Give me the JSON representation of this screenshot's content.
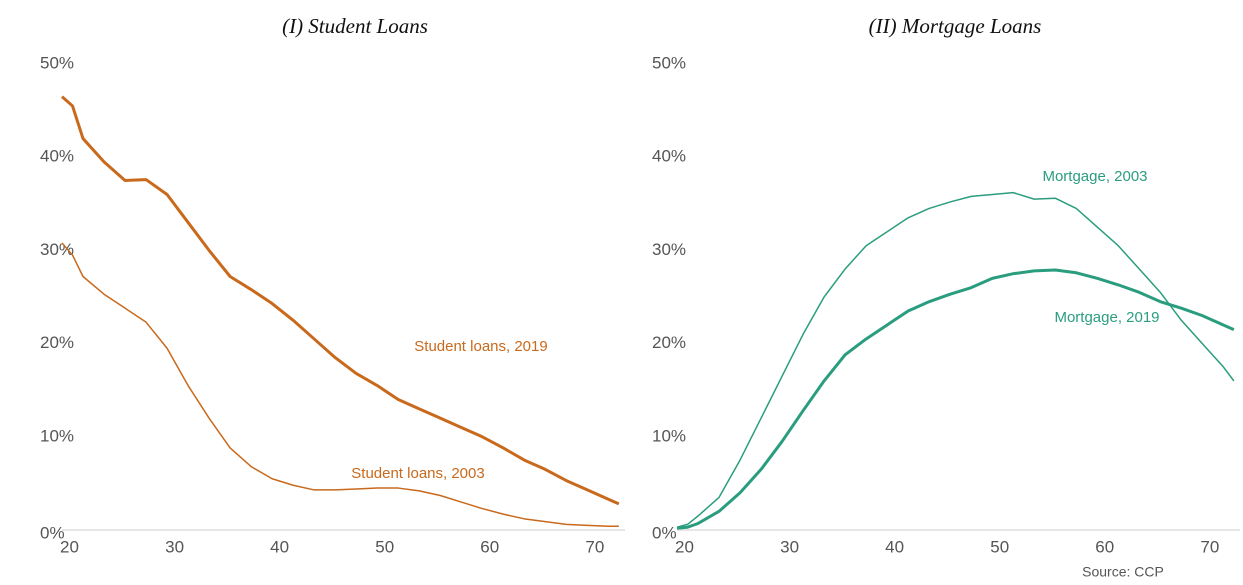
{
  "chart_data": [
    {
      "type": "line",
      "title": "(I) Student Loans",
      "x": [
        19,
        20,
        21,
        23,
        25,
        27,
        29,
        31,
        33,
        35,
        37,
        39,
        41,
        43,
        45,
        47,
        49,
        51,
        53,
        55,
        57,
        59,
        61,
        63,
        65,
        67,
        69,
        71,
        72
      ],
      "series": [
        {
          "name": "Student loans, 2019",
          "color": "#c8691c",
          "line_width": 3,
          "values": [
            46.5,
            45.5,
            42,
            39.5,
            37.5,
            37.6,
            36,
            33,
            30,
            27.2,
            25.8,
            24.3,
            22.5,
            20.5,
            18.5,
            16.8,
            15.5,
            14,
            13,
            12,
            11,
            10,
            8.8,
            7.5,
            6.5,
            5.3,
            4.3,
            3.3,
            2.8
          ]
        },
        {
          "name": "Student loans, 2003",
          "color": "#c8691c",
          "line_width": 1.5,
          "values": [
            30.8,
            29.5,
            27.2,
            25.3,
            23.8,
            22.3,
            19.5,
            15.5,
            12,
            8.8,
            6.8,
            5.5,
            4.8,
            4.3,
            4.3,
            4.4,
            4.5,
            4.5,
            4.2,
            3.7,
            3,
            2.3,
            1.7,
            1.2,
            0.9,
            0.6,
            0.5,
            0.4,
            0.4
          ]
        }
      ],
      "xlim": [
        19,
        72.3
      ],
      "xticks": [
        20,
        30,
        40,
        50,
        60,
        70
      ],
      "ylim": [
        0,
        50
      ],
      "yticks": [
        {
          "value": 0,
          "label": "0%"
        },
        {
          "value": 10,
          "label": "10%"
        },
        {
          "value": 20,
          "label": "20%"
        },
        {
          "value": 30,
          "label": "30%"
        },
        {
          "value": 40,
          "label": "40%"
        },
        {
          "value": 50,
          "label": "50%"
        }
      ],
      "grid": false
    },
    {
      "type": "line",
      "title": "(II) Mortgage Loans",
      "x": [
        19,
        20,
        21,
        23,
        25,
        27,
        29,
        31,
        33,
        35,
        37,
        39,
        41,
        43,
        45,
        47,
        49,
        51,
        53,
        55,
        57,
        59,
        61,
        63,
        65,
        67,
        69,
        71,
        72
      ],
      "series": [
        {
          "name": "Mortgage, 2003",
          "color": "#2a9d7f",
          "line_width": 1.5,
          "values": [
            0.3,
            0.6,
            1.5,
            3.5,
            7.5,
            12,
            16.5,
            21,
            25,
            28,
            30.5,
            32,
            33.5,
            34.5,
            35.2,
            35.8,
            36,
            36.2,
            35.5,
            35.6,
            34.5,
            32.5,
            30.5,
            28,
            25.5,
            22.5,
            20,
            17.5,
            16
          ]
        },
        {
          "name": "Mortgage, 2019",
          "color": "#2a9d7f",
          "line_width": 3,
          "values": [
            0.2,
            0.3,
            0.7,
            2,
            4,
            6.5,
            9.5,
            12.8,
            16,
            18.8,
            20.5,
            22,
            23.5,
            24.5,
            25.3,
            26,
            27,
            27.5,
            27.8,
            27.9,
            27.6,
            27,
            26.3,
            25.5,
            24.5,
            23.8,
            23,
            22,
            21.5
          ]
        }
      ],
      "xlim": [
        19,
        72.3
      ],
      "xticks": [
        20,
        30,
        40,
        50,
        60,
        70
      ],
      "ylim": [
        0,
        50
      ],
      "yticks": [
        {
          "value": 0,
          "label": "0%"
        },
        {
          "value": 10,
          "label": "10%"
        },
        {
          "value": 20,
          "label": "20%"
        },
        {
          "value": 30,
          "label": "30%"
        },
        {
          "value": 40,
          "label": "40%"
        },
        {
          "value": 50,
          "label": "50%"
        }
      ],
      "grid": false
    }
  ],
  "source": "Source: CCP"
}
